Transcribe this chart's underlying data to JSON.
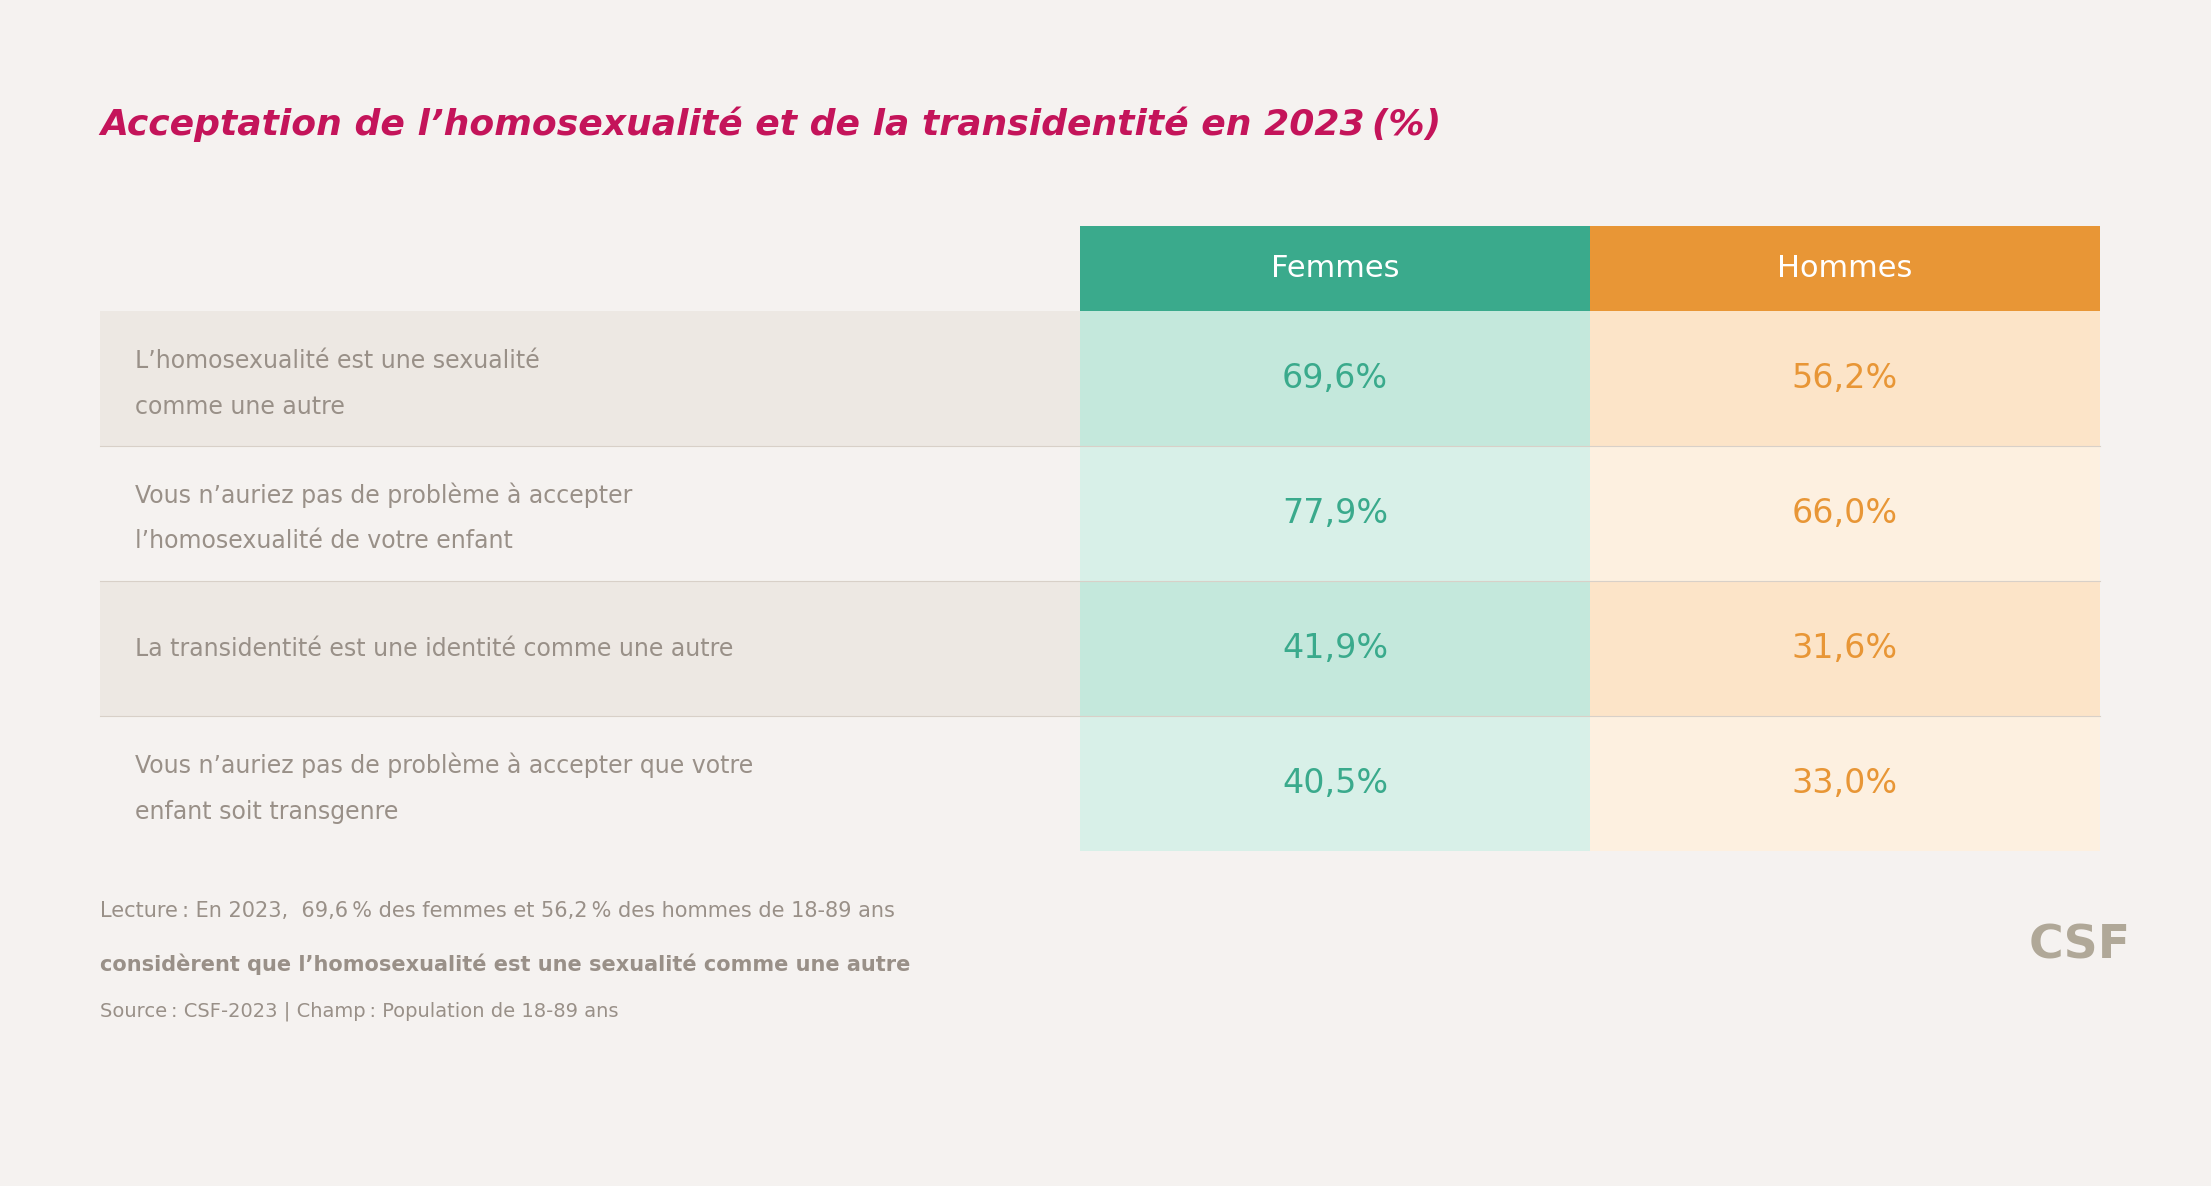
{
  "title": "Acceptation de l’homosexualité et de la transidentité en 2023 (%)",
  "title_color": "#c4145a",
  "background_color": "#f5f2f0",
  "rows": [
    {
      "label_line1": "L’homosexualité est une sexualité",
      "label_line2": "comme une autre",
      "femmes": "69,6%",
      "hommes": "56,2%",
      "row_bg": "#ede8e3"
    },
    {
      "label_line1": "Vous n’auriez pas de problème à accepter",
      "label_line2": "l’homosexualité de votre enfant",
      "femmes": "77,9%",
      "hommes": "66,0%",
      "row_bg": "#f5f2f0"
    },
    {
      "label_line1": "La transidentité est une identité comme une autre",
      "label_line2": "",
      "femmes": "41,9%",
      "hommes": "31,6%",
      "row_bg": "#ede8e3"
    },
    {
      "label_line1": "Vous n’auriez pas de problème à accepter que votre",
      "label_line2": "enfant soit transgenre",
      "femmes": "40,5%",
      "hommes": "33,0%",
      "row_bg": "#f5f2f0"
    }
  ],
  "header_femmes": "Femmes",
  "header_hommes": "Hommes",
  "header_femmes_bg": "#3aaa8c",
  "header_hommes_bg": "#e89636",
  "header_text_color": "#ffffff",
  "femmes_cell_bgs": [
    "#c4e8dc",
    "#d8f0e8",
    "#c4e8dc",
    "#d8f0e8"
  ],
  "hommes_cell_bgs": [
    "#fce4c8",
    "#fdf0e0",
    "#fce4c8",
    "#fdf0e0"
  ],
  "femmes_value_color": "#3aaa8c",
  "hommes_value_color": "#e89636",
  "label_text_color": "#999088",
  "footer_line1": "Lecture : En 2023,  69,6 % des femmes et 56,2 % des hommes de 18-89 ans",
  "footer_line2": "considèrent que l’homosexualité est une sexualité comme une autre",
  "footer_line3": "Source : CSF-2023 | Champ : Population de 18-89 ans",
  "footer_color": "#999088",
  "csf_text": "CSF",
  "csf_color": "#b0a898"
}
